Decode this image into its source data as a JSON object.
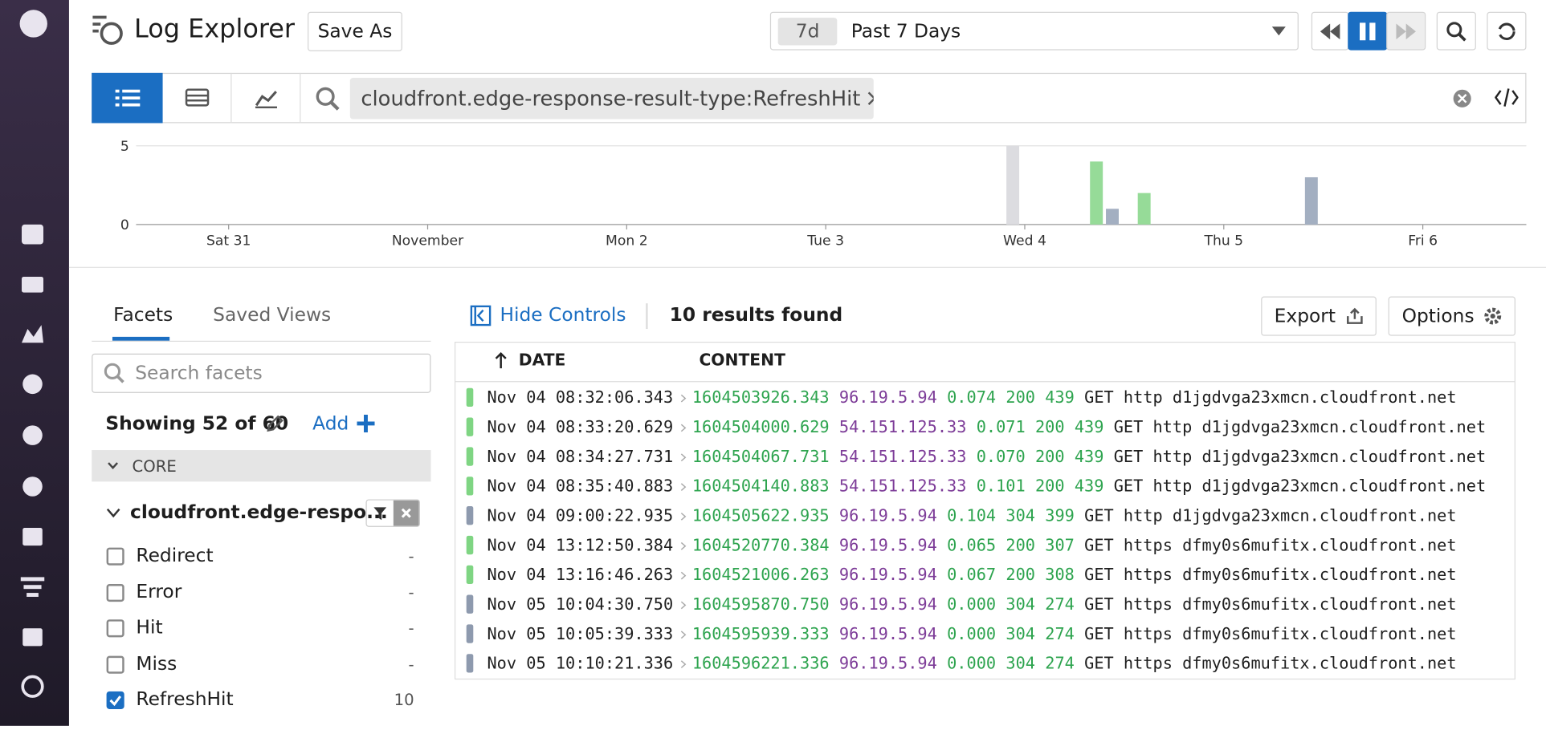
{
  "header": {
    "title": "Log Explorer",
    "save_as": "Save As",
    "time_badge": "7d",
    "time_range": "Past 7 Days"
  },
  "search": {
    "query": "cloudfront.edge-response-result-type:RefreshHit"
  },
  "chart_data": {
    "type": "bar",
    "x": [
      3.94,
      4.36,
      4.44,
      4.6,
      5.44
    ],
    "values": [
      5,
      4,
      1,
      2,
      3
    ],
    "colors": [
      "#dcdce0",
      "#96db98",
      "#a3afc1",
      "#96db98",
      "#a3afc1"
    ],
    "xlim": [
      -0.48,
      6.52
    ],
    "xticks": [
      {
        "value": 0,
        "label": "Sat 31"
      },
      {
        "value": 1,
        "label": "November"
      },
      {
        "value": 2,
        "label": "Mon 2"
      },
      {
        "value": 3,
        "label": "Tue 3"
      },
      {
        "value": 4,
        "label": "Wed 4"
      },
      {
        "value": 5,
        "label": "Thu 5"
      },
      {
        "value": 6,
        "label": "Fri 6"
      }
    ],
    "ylim": [
      0,
      5
    ],
    "yticks": [
      0,
      5
    ],
    "grid": true
  },
  "facets": {
    "tabs": [
      "Facets",
      "Saved Views"
    ],
    "search_placeholder": "Search facets",
    "showing": "Showing 52 of 60",
    "add": "Add",
    "section": "CORE",
    "facet_name": "cloudfront.edge-respo...",
    "options": [
      {
        "label": "Redirect",
        "count": "-",
        "checked": false
      },
      {
        "label": "Error",
        "count": "-",
        "checked": false
      },
      {
        "label": "Hit",
        "count": "-",
        "checked": false
      },
      {
        "label": "Miss",
        "count": "-",
        "checked": false
      },
      {
        "label": "RefreshHit",
        "count": "10",
        "checked": true
      }
    ]
  },
  "results": {
    "hide_controls": "Hide Controls",
    "count_text": "10 results found",
    "export": "Export",
    "options": "Options",
    "columns": [
      "DATE",
      "CONTENT"
    ],
    "rows": [
      {
        "date": "Nov 04 08:32:06.343",
        "epoch": "1604503926.343",
        "ip": "96.19.5.94",
        "time_taken": "0.074",
        "status": "200",
        "bytes": "439",
        "rest": "GET http d1jgdvga23xmcn.cloudfront.net"
      },
      {
        "date": "Nov 04 08:33:20.629",
        "epoch": "1604504000.629",
        "ip": "54.151.125.33",
        "time_taken": "0.071",
        "status": "200",
        "bytes": "439",
        "rest": "GET http d1jgdvga23xmcn.cloudfront.net"
      },
      {
        "date": "Nov 04 08:34:27.731",
        "epoch": "1604504067.731",
        "ip": "54.151.125.33",
        "time_taken": "0.070",
        "status": "200",
        "bytes": "439",
        "rest": "GET http d1jgdvga23xmcn.cloudfront.net"
      },
      {
        "date": "Nov 04 08:35:40.883",
        "epoch": "1604504140.883",
        "ip": "54.151.125.33",
        "time_taken": "0.101",
        "status": "200",
        "bytes": "439",
        "rest": "GET http d1jgdvga23xmcn.cloudfront.net"
      },
      {
        "date": "Nov 04 09:00:22.935",
        "epoch": "1604505622.935",
        "ip": "96.19.5.94",
        "time_taken": "0.104",
        "status": "304",
        "bytes": "399",
        "rest": "GET http d1jgdvga23xmcn.cloudfront.net"
      },
      {
        "date": "Nov 04 13:12:50.384",
        "epoch": "1604520770.384",
        "ip": "96.19.5.94",
        "time_taken": "0.065",
        "status": "200",
        "bytes": "307",
        "rest": "GET https dfmy0s6mufitx.cloudfront.net"
      },
      {
        "date": "Nov 04 13:16:46.263",
        "epoch": "1604521006.263",
        "ip": "96.19.5.94",
        "time_taken": "0.067",
        "status": "200",
        "bytes": "308",
        "rest": "GET https dfmy0s6mufitx.cloudfront.net"
      },
      {
        "date": "Nov 05 10:04:30.750",
        "epoch": "1604595870.750",
        "ip": "96.19.5.94",
        "time_taken": "0.000",
        "status": "304",
        "bytes": "274",
        "rest": "GET https dfmy0s6mufitx.cloudfront.net"
      },
      {
        "date": "Nov 05 10:05:39.333",
        "epoch": "1604595939.333",
        "ip": "96.19.5.94",
        "time_taken": "0.000",
        "status": "304",
        "bytes": "274",
        "rest": "GET https dfmy0s6mufitx.cloudfront.net"
      },
      {
        "date": "Nov 05 10:10:21.336",
        "epoch": "1604596221.336",
        "ip": "96.19.5.94",
        "time_taken": "0.000",
        "status": "304",
        "bytes": "274",
        "rest": "GET https dfmy0s6mufitx.cloudfront.net"
      }
    ]
  }
}
